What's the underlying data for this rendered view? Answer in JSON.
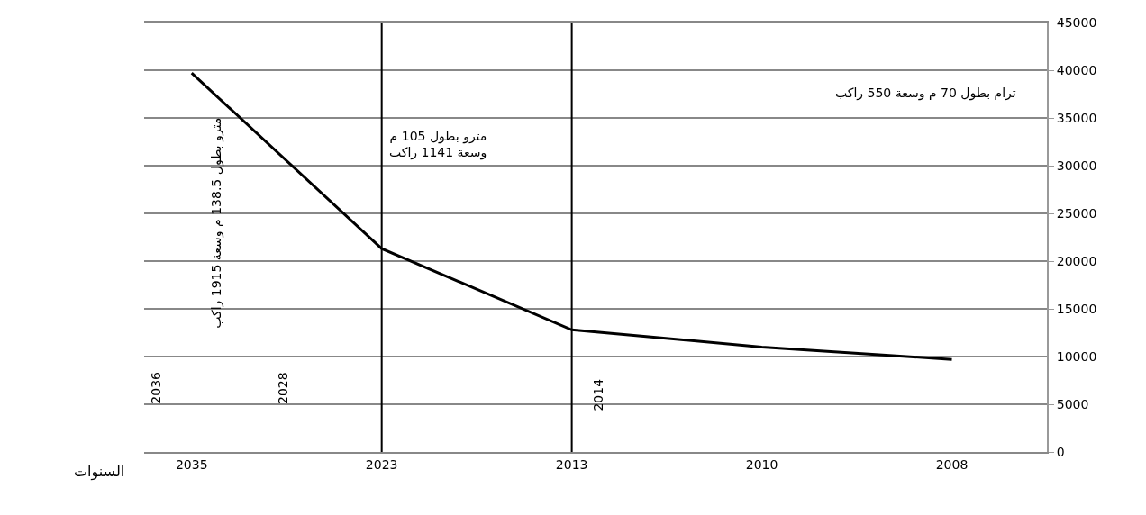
{
  "chart_data": {
    "type": "line",
    "xlabel": "السنوات",
    "categories": [
      "2035",
      "2023",
      "2013",
      "2010",
      "2008"
    ],
    "series": [
      {
        "color": "#000000",
        "values": [
          39700,
          21300,
          12800,
          11000,
          9700
        ]
      }
    ],
    "ylim": [
      0,
      45000
    ],
    "yticks": [
      0,
      5000,
      10000,
      15000,
      20000,
      25000,
      30000,
      35000,
      40000,
      45000
    ],
    "grid": "y",
    "marker": "none",
    "line_style": "solid",
    "ref_lines": [
      {
        "axis": "x",
        "value": "2023",
        "color": "#000000"
      },
      {
        "axis": "x",
        "value": "2013",
        "color": "#000000"
      }
    ],
    "annotations": [
      "ترام بطول 70 م وسعة 550 راكب",
      "مترو بطول 105 م\nوسعة 1141 راكب",
      "مترو بطول 138.5 م وسعة 1915 راكب",
      "2036",
      "2028",
      "2014"
    ]
  }
}
